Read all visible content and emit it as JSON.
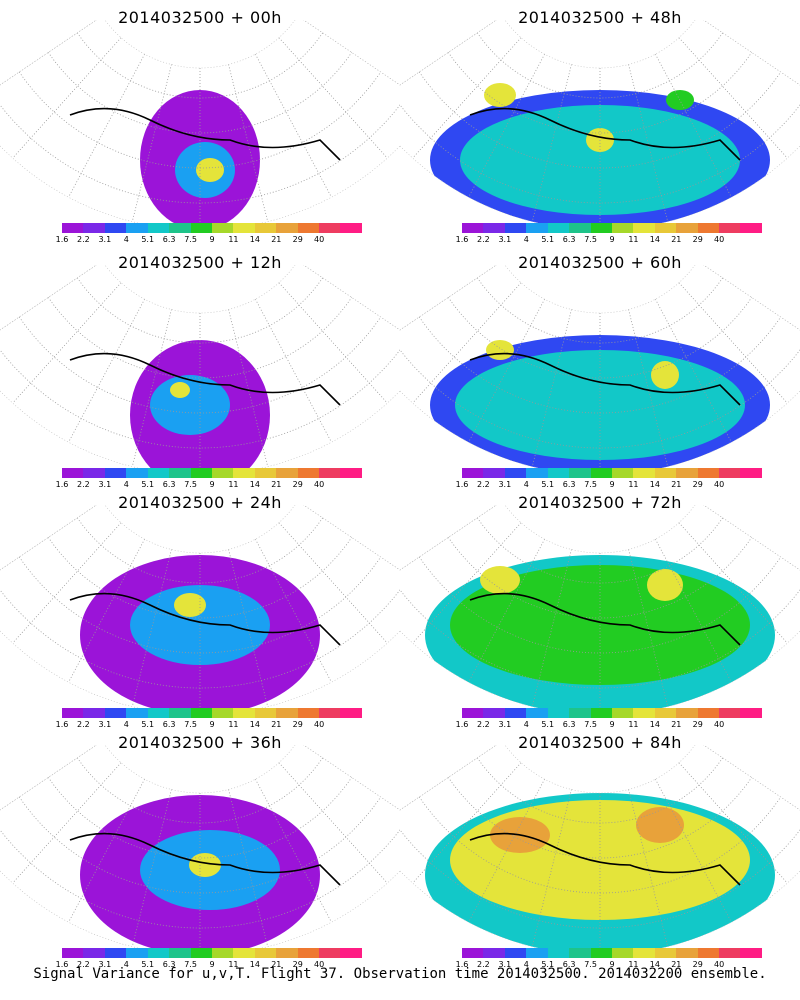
{
  "panels": [
    {
      "title": "2014032500 + 00h"
    },
    {
      "title": "2014032500 + 48h"
    },
    {
      "title": "2014032500 + 12h"
    },
    {
      "title": "2014032500 + 60h"
    },
    {
      "title": "2014032500 + 24h"
    },
    {
      "title": "2014032500 + 72h"
    },
    {
      "title": "2014032500 + 36h"
    },
    {
      "title": "2014032500 + 84h"
    }
  ],
  "colorbar": {
    "colors": [
      "#9b14d8",
      "#7a28e8",
      "#2f48f2",
      "#1aa0f2",
      "#12c8c8",
      "#1ec48a",
      "#22cc22",
      "#a6d82a",
      "#e4e43a",
      "#e8c838",
      "#e8a23a",
      "#ee7830",
      "#ee3c60",
      "#ff1c84"
    ],
    "labels": [
      "1.6",
      "2.2",
      "3.1",
      "4",
      "5.1",
      "6.3",
      "7.5",
      "9",
      "11",
      "14",
      "21",
      "29",
      "40"
    ]
  },
  "caption": "Signal Variance for u,v,T. Flight 37. Observation time 2014032500. 2014032200 ensemble."
}
